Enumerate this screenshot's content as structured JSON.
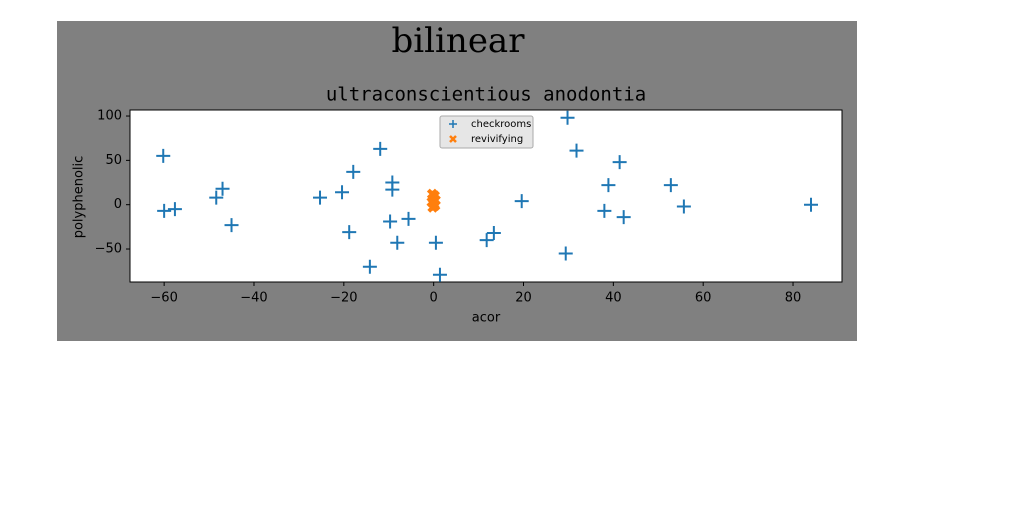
{
  "chart_data": {
    "type": "scatter",
    "suptitle": "bilinear",
    "title": "ultraconscientious anodontia",
    "x_label": "acor",
    "y_label": "polyphenolic",
    "xlim": [
      -67.6,
      90.9
    ],
    "ylim": [
      -87.2,
      106.8
    ],
    "xticks": [
      {
        "value": -60,
        "label": "−60"
      },
      {
        "value": -40,
        "label": "−40"
      },
      {
        "value": -20,
        "label": "−20"
      },
      0,
      20,
      40,
      60,
      80
    ],
    "yticks": [
      {
        "value": -50,
        "label": "−50"
      },
      0,
      50,
      100
    ],
    "legend": "upper center",
    "series": [
      {
        "name": "checkrooms",
        "color": "#1f77b4",
        "marker": "plus",
        "x": [
          -60.2,
          -60,
          -57.6,
          -48.4,
          -47,
          -45,
          -25.3,
          -20.4,
          -18.8,
          -17.9,
          -11.9,
          -9.2,
          -9.2,
          -9.7,
          -8.1,
          -5.6,
          -14.2,
          0.5,
          1.4,
          11.8,
          13.4,
          19.6,
          29.4,
          29.8,
          31.8,
          38,
          38.9,
          41.4,
          42.3,
          52.8,
          55.7,
          84
        ],
        "values": [
          55,
          -7,
          -5,
          8,
          18,
          -23,
          8,
          14,
          -31,
          37,
          63,
          25,
          17,
          -19,
          -43,
          -16,
          -70,
          -43,
          -79,
          -40,
          -32,
          4,
          -55,
          98,
          61,
          -7,
          22,
          48,
          -14,
          22,
          -2,
          0
        ]
      },
      {
        "name": "revivifying",
        "color": "#ff7f0e",
        "marker": "x",
        "x": [
          -0.3,
          0.2,
          -0.1,
          0.4,
          -0.4,
          0.1,
          0.3,
          -0.2
        ],
        "values": [
          12,
          10,
          7,
          5,
          3,
          1,
          -1,
          -3
        ]
      }
    ]
  }
}
